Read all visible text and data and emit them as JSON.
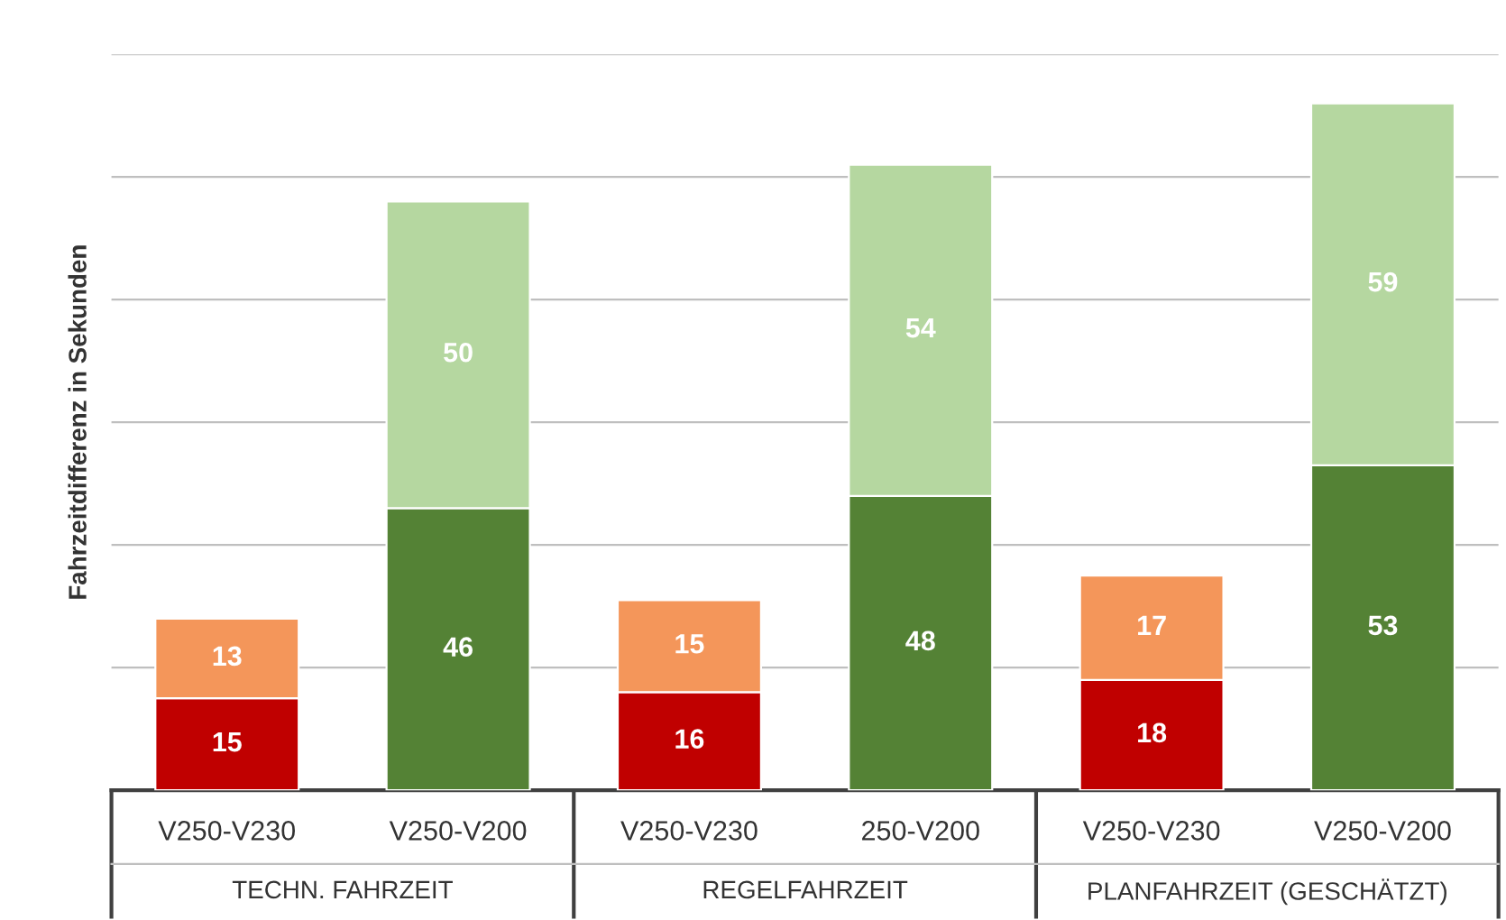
{
  "chart_data": {
    "type": "bar",
    "stacked": true,
    "ylabel": "Fahrzeitdifferenz in Sekunden",
    "categories": [
      "V250-V230",
      "V250-V200",
      "V250-V230",
      "250-V200",
      "V250-V230",
      "V250-V200"
    ],
    "series": [
      {
        "colors": [
          "#c00000",
          "#548235",
          "#c00000",
          "#548235",
          "#c00000",
          "#548235"
        ],
        "values": [
          15,
          46,
          16,
          48,
          18,
          53
        ]
      },
      {
        "colors": [
          "#f4965a",
          "#b5d7a0",
          "#f4965a",
          "#b5d7a0",
          "#f4965a",
          "#b5d7a0"
        ],
        "values": [
          13,
          50,
          15,
          54,
          17,
          59
        ]
      }
    ],
    "ylim": [
      0,
      120
    ],
    "yticks": [
      {
        "value": 0,
        "label": null
      },
      {
        "value": 20,
        "label": null
      },
      {
        "value": 40,
        "label": null
      },
      {
        "value": 60,
        "label": null
      },
      {
        "value": 80,
        "label": null
      },
      {
        "value": 100,
        "label": null
      },
      {
        "value": 120,
        "label": null
      }
    ],
    "grid": "y",
    "tick_labels": "x",
    "data_labels": true,
    "annotations": [
      "TECHN. FAHRZEIT",
      "REGELFAHRZEIT",
      "PLANFAHRZEIT (GESCHÄTZT)"
    ]
  }
}
